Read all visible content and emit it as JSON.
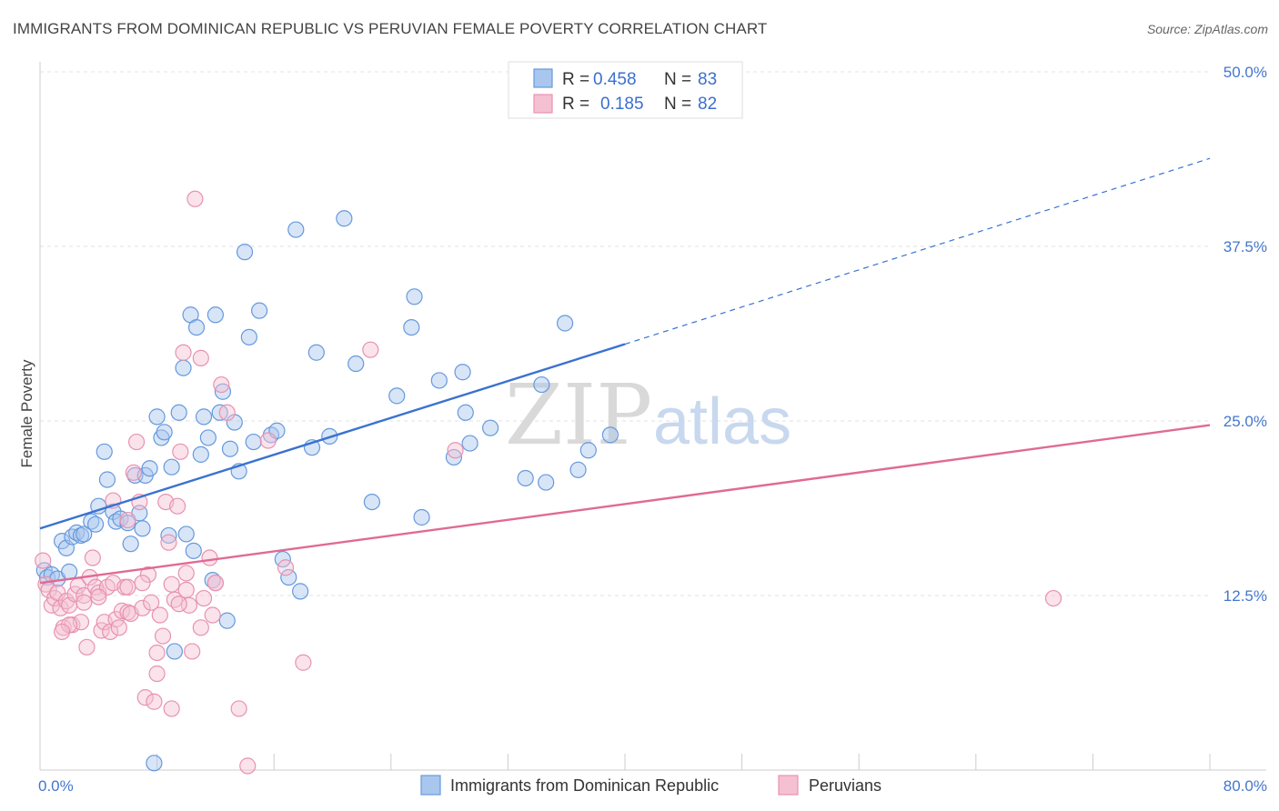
{
  "title": "IMMIGRANTS FROM DOMINICAN REPUBLIC VS PERUVIAN FEMALE POVERTY CORRELATION CHART",
  "source": "Source: ZipAtlas.com",
  "watermark": {
    "part1": "ZIP",
    "part2": "atlas"
  },
  "legend": {
    "r_label": "R =",
    "n_label": "N =",
    "series": [
      {
        "r": "0.458",
        "n": "83"
      },
      {
        "r": "0.185",
        "n": "82"
      }
    ]
  },
  "chart_data": {
    "type": "scatter",
    "ylabel": "Female Poverty",
    "xlim": [
      0,
      80
    ],
    "ylim": [
      0,
      50
    ],
    "x_ticks": [
      {
        "value": 0,
        "label": "0.0%"
      },
      {
        "value": 80,
        "label": "80.0%"
      }
    ],
    "y_ticks": [
      {
        "value": 12.5,
        "label": "12.5%"
      },
      {
        "value": 25,
        "label": "25.0%"
      },
      {
        "value": 37.5,
        "label": "37.5%"
      },
      {
        "value": 50,
        "label": "50.0%"
      }
    ],
    "series": [
      {
        "name": "Immigrants from Dominican Republic",
        "color": "#6699dd",
        "fill": "#a9c6ee",
        "line_color": "#3a72d0",
        "trend": {
          "x0": 0,
          "y0": 17.3,
          "x1": 40,
          "y1": 30.5,
          "dash_to_x": 80,
          "dash_to_y": 43.8
        },
        "points": [
          [
            0.3,
            14.3
          ],
          [
            0.5,
            13.8
          ],
          [
            0.8,
            14.0
          ],
          [
            1.2,
            13.7
          ],
          [
            1.5,
            16.4
          ],
          [
            1.8,
            15.9
          ],
          [
            2.0,
            14.2
          ],
          [
            2.2,
            16.7
          ],
          [
            2.5,
            17.0
          ],
          [
            2.8,
            16.8
          ],
          [
            3.0,
            16.9
          ],
          [
            3.5,
            17.8
          ],
          [
            3.8,
            17.6
          ],
          [
            4.0,
            18.9
          ],
          [
            4.4,
            22.8
          ],
          [
            4.6,
            20.8
          ],
          [
            5.0,
            18.5
          ],
          [
            5.2,
            17.8
          ],
          [
            5.5,
            18.0
          ],
          [
            6.0,
            17.7
          ],
          [
            6.2,
            16.2
          ],
          [
            6.5,
            21.1
          ],
          [
            6.8,
            18.4
          ],
          [
            7.0,
            17.3
          ],
          [
            7.2,
            21.1
          ],
          [
            7.5,
            21.6
          ],
          [
            7.8,
            0.5
          ],
          [
            8.0,
            25.3
          ],
          [
            8.3,
            23.8
          ],
          [
            8.5,
            24.2
          ],
          [
            8.8,
            16.8
          ],
          [
            9.0,
            21.7
          ],
          [
            9.2,
            8.5
          ],
          [
            9.5,
            25.6
          ],
          [
            9.8,
            28.8
          ],
          [
            10.0,
            16.9
          ],
          [
            10.3,
            32.6
          ],
          [
            10.5,
            15.7
          ],
          [
            10.7,
            31.7
          ],
          [
            11.0,
            22.6
          ],
          [
            11.2,
            25.3
          ],
          [
            11.5,
            23.8
          ],
          [
            11.8,
            13.6
          ],
          [
            12.0,
            32.6
          ],
          [
            12.3,
            25.6
          ],
          [
            12.5,
            27.1
          ],
          [
            12.8,
            10.7
          ],
          [
            13.0,
            23.0
          ],
          [
            13.3,
            24.9
          ],
          [
            13.6,
            21.4
          ],
          [
            14.0,
            37.1
          ],
          [
            14.3,
            31.0
          ],
          [
            14.6,
            23.5
          ],
          [
            15.0,
            32.9
          ],
          [
            15.8,
            24.0
          ],
          [
            16.2,
            24.3
          ],
          [
            16.6,
            15.1
          ],
          [
            17.0,
            13.8
          ],
          [
            17.5,
            38.7
          ],
          [
            17.8,
            12.8
          ],
          [
            18.6,
            23.1
          ],
          [
            18.9,
            29.9
          ],
          [
            19.8,
            23.9
          ],
          [
            20.8,
            39.5
          ],
          [
            21.6,
            29.1
          ],
          [
            22.7,
            19.2
          ],
          [
            24.4,
            26.8
          ],
          [
            25.4,
            31.7
          ],
          [
            25.6,
            33.9
          ],
          [
            26.1,
            18.1
          ],
          [
            27.3,
            27.9
          ],
          [
            28.3,
            22.4
          ],
          [
            28.9,
            28.5
          ],
          [
            29.1,
            25.6
          ],
          [
            29.4,
            23.4
          ],
          [
            30.8,
            24.5
          ],
          [
            33.2,
            20.9
          ],
          [
            34.3,
            27.6
          ],
          [
            34.6,
            20.6
          ],
          [
            35.9,
            32.0
          ],
          [
            36.8,
            21.5
          ],
          [
            37.5,
            22.9
          ],
          [
            39.0,
            24.0
          ]
        ]
      },
      {
        "name": "Peruvians",
        "color": "#e892b0",
        "fill": "#f5c0d2",
        "line_color": "#e06a95",
        "trend": {
          "x0": 0,
          "y0": 13.4,
          "x1": 80,
          "y1": 24.7
        },
        "points": [
          [
            0.2,
            15.0
          ],
          [
            0.4,
            13.3
          ],
          [
            0.6,
            12.9
          ],
          [
            0.8,
            11.8
          ],
          [
            1.0,
            12.3
          ],
          [
            1.2,
            12.7
          ],
          [
            1.4,
            11.6
          ],
          [
            1.6,
            10.2
          ],
          [
            1.8,
            12.1
          ],
          [
            2.0,
            11.8
          ],
          [
            2.2,
            10.4
          ],
          [
            2.4,
            12.6
          ],
          [
            2.6,
            13.2
          ],
          [
            2.8,
            10.6
          ],
          [
            3.0,
            12.5
          ],
          [
            3.2,
            8.8
          ],
          [
            3.4,
            13.8
          ],
          [
            3.6,
            15.2
          ],
          [
            3.8,
            13.1
          ],
          [
            4.0,
            12.7
          ],
          [
            4.2,
            10.0
          ],
          [
            4.4,
            10.6
          ],
          [
            4.6,
            13.1
          ],
          [
            4.8,
            9.9
          ],
          [
            5.0,
            13.4
          ],
          [
            5.2,
            10.8
          ],
          [
            5.4,
            10.2
          ],
          [
            5.6,
            11.4
          ],
          [
            5.8,
            13.1
          ],
          [
            6.0,
            11.3
          ],
          [
            6.2,
            11.2
          ],
          [
            6.4,
            21.3
          ],
          [
            6.6,
            23.5
          ],
          [
            6.8,
            19.2
          ],
          [
            7.0,
            11.6
          ],
          [
            7.2,
            5.2
          ],
          [
            7.4,
            14.0
          ],
          [
            7.6,
            12.0
          ],
          [
            7.8,
            4.9
          ],
          [
            8.0,
            8.4
          ],
          [
            8.2,
            11.1
          ],
          [
            8.4,
            9.6
          ],
          [
            8.6,
            19.2
          ],
          [
            8.8,
            16.3
          ],
          [
            9.0,
            4.4
          ],
          [
            9.2,
            12.2
          ],
          [
            9.4,
            18.9
          ],
          [
            9.6,
            22.8
          ],
          [
            9.8,
            29.9
          ],
          [
            10.0,
            12.9
          ],
          [
            10.2,
            11.8
          ],
          [
            10.4,
            8.5
          ],
          [
            10.6,
            40.9
          ],
          [
            11.0,
            29.5
          ],
          [
            11.2,
            12.3
          ],
          [
            11.6,
            15.2
          ],
          [
            11.8,
            11.1
          ],
          [
            12.0,
            13.4
          ],
          [
            12.4,
            27.6
          ],
          [
            12.8,
            25.6
          ],
          [
            13.6,
            4.4
          ],
          [
            14.2,
            0.3
          ],
          [
            15.6,
            23.6
          ],
          [
            16.8,
            14.5
          ],
          [
            18.0,
            7.7
          ],
          [
            22.6,
            30.1
          ],
          [
            28.4,
            22.9
          ],
          [
            69.3,
            12.3
          ],
          [
            5.0,
            19.3
          ],
          [
            6.0,
            17.9
          ],
          [
            7.0,
            13.4
          ],
          [
            8.0,
            6.9
          ],
          [
            9.0,
            13.3
          ],
          [
            10.0,
            14.1
          ],
          [
            11.0,
            10.2
          ],
          [
            3.0,
            12.0
          ],
          [
            2.0,
            10.4
          ],
          [
            4.0,
            12.4
          ],
          [
            6.0,
            13.1
          ],
          [
            1.5,
            9.9
          ],
          [
            12.0,
            13.4
          ],
          [
            9.5,
            11.9
          ]
        ]
      }
    ]
  }
}
